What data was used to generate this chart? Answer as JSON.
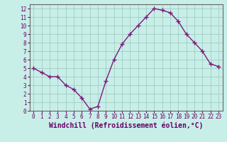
{
  "x": [
    0,
    1,
    2,
    3,
    4,
    5,
    6,
    7,
    8,
    9,
    10,
    11,
    12,
    13,
    14,
    15,
    16,
    17,
    18,
    19,
    20,
    21,
    22,
    23
  ],
  "y": [
    5.0,
    4.5,
    4.0,
    4.0,
    3.0,
    2.5,
    1.5,
    0.2,
    0.5,
    3.5,
    6.0,
    7.8,
    9.0,
    10.0,
    11.0,
    12.0,
    11.8,
    11.5,
    10.5,
    9.0,
    8.0,
    7.0,
    5.5,
    5.2
  ],
  "line_color": "#7b1a7b",
  "marker": "+",
  "marker_size": 4,
  "marker_linewidth": 1.0,
  "background_color": "#c8eee8",
  "grid_color": "#a0ccc4",
  "xlabel": "Windchill (Refroidissement éolien,°C)",
  "xlabel_fontsize": 7,
  "xlabel_color": "#660066",
  "xlim": [
    -0.5,
    23.5
  ],
  "ylim": [
    0,
    12.5
  ],
  "xticks": [
    0,
    1,
    2,
    3,
    4,
    5,
    6,
    7,
    8,
    9,
    10,
    11,
    12,
    13,
    14,
    15,
    16,
    17,
    18,
    19,
    20,
    21,
    22,
    23
  ],
  "yticks": [
    0,
    1,
    2,
    3,
    4,
    5,
    6,
    7,
    8,
    9,
    10,
    11,
    12
  ],
  "tick_fontsize": 5.5,
  "tick_color": "#660066",
  "line_width": 1.0
}
